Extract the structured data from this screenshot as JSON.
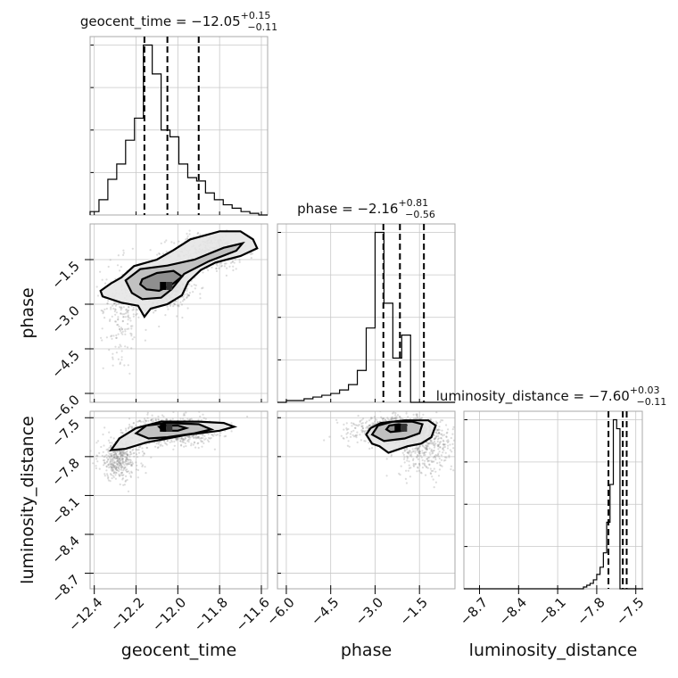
{
  "chart_data": {
    "type": "corner",
    "parameters": [
      {
        "name": "geocent_time",
        "xlabel": "geocent_time",
        "range": [
          -12.42,
          -11.57
        ],
        "ticks": [
          -12.4,
          -12.2,
          -12.0,
          -11.8,
          -11.6
        ],
        "tick_labels": [
          "−12.4",
          "−12.2",
          "−12.0",
          "−11.8",
          "−11.6"
        ],
        "title": {
          "prefix": "geocent_time = −12.05",
          "plus": "+0.15",
          "minus": "−0.11"
        },
        "quantiles": [
          -12.16,
          -12.05,
          -11.9
        ],
        "histogram": {
          "edges_start": -12.42,
          "bin_width": 0.0425,
          "counts": [
            2,
            9,
            21,
            30,
            44,
            57,
            100,
            83,
            50,
            46,
            30,
            22,
            20,
            13,
            9,
            6,
            4,
            2,
            1,
            0
          ]
        }
      },
      {
        "name": "phase",
        "xlabel": "phase",
        "ylabel": "phase",
        "range": [
          -6.3,
          -0.3
        ],
        "ticks": [
          -6.0,
          -4.5,
          -3.0,
          -1.5
        ],
        "tick_labels": [
          "−6.0",
          "−4.5",
          "−3.0",
          "−1.5"
        ],
        "title": {
          "prefix": "phase = −2.16",
          "plus": "+0.81",
          "minus": "−0.56"
        },
        "quantiles": [
          -2.72,
          -2.16,
          -1.35
        ],
        "histogram": {
          "edges_start": -6.3,
          "bin_width": 0.3,
          "counts": [
            0,
            1,
            1,
            2,
            3,
            4,
            5,
            7,
            10,
            18,
            42,
            96,
            56,
            25,
            38,
            0,
            0,
            0,
            0,
            0
          ]
        }
      },
      {
        "name": "luminosity_distance",
        "xlabel": "luminosity_distance",
        "ylabel": "luminosity_distance",
        "range": [
          -8.82,
          -7.45
        ],
        "ticks": [
          -8.7,
          -8.4,
          -8.1,
          -7.8,
          -7.5
        ],
        "tick_labels": [
          "−8.7",
          "−8.4",
          "−8.1",
          "−7.8",
          "−7.5"
        ],
        "title": {
          "prefix": "luminosity_distance = −7.60",
          "plus": "+0.03",
          "minus": "−0.11"
        },
        "quantiles": [
          -7.71,
          -7.6,
          -7.57
        ],
        "histogram": {
          "edges_start": -8.82,
          "bin_width": 0.0255,
          "counts": [
            0,
            0,
            0,
            0,
            0,
            0,
            0,
            0,
            0,
            0,
            0,
            0,
            0,
            0,
            0,
            0,
            0,
            0,
            0,
            0,
            0,
            0,
            0,
            0,
            0,
            0,
            0,
            0,
            0,
            0,
            0,
            0,
            0,
            0,
            0,
            0,
            1,
            2,
            3,
            5,
            8,
            12,
            20,
            37,
            58,
            94,
            89,
            0,
            0,
            0,
            0,
            0,
            0,
            0
          ]
        }
      }
    ],
    "pairs": [
      {
        "x": "geocent_time",
        "y": "phase",
        "peak": [
          -12.06,
          -2.4
        ],
        "contours": [
          [
            [
              -12.17,
              -2.16
            ],
            [
              -12.1,
              -1.95
            ],
            [
              -12.02,
              -1.88
            ],
            [
              -11.98,
              -2.07
            ],
            [
              -12.03,
              -2.35
            ],
            [
              -12.09,
              -2.55
            ],
            [
              -12.15,
              -2.5
            ],
            [
              -12.18,
              -2.33
            ]
          ],
          [
            [
              -12.22,
              -2.62
            ],
            [
              -12.25,
              -2.2
            ],
            [
              -12.18,
              -1.82
            ],
            [
              -12.05,
              -1.7
            ],
            [
              -11.92,
              -1.5
            ],
            [
              -11.78,
              -1.1
            ],
            [
              -11.69,
              -0.95
            ],
            [
              -11.72,
              -1.2
            ],
            [
              -11.85,
              -1.55
            ],
            [
              -11.97,
              -1.98
            ],
            [
              -12.03,
              -2.5
            ],
            [
              -12.08,
              -2.78
            ],
            [
              -12.17,
              -2.83
            ]
          ],
          [
            [
              -12.37,
              -2.55
            ],
            [
              -12.36,
              -2.74
            ],
            [
              -12.27,
              -2.95
            ],
            [
              -12.19,
              -3.05
            ],
            [
              -12.16,
              -3.42
            ],
            [
              -12.13,
              -3.15
            ],
            [
              -12.05,
              -3.0
            ],
            [
              -11.98,
              -2.7
            ],
            [
              -11.95,
              -2.25
            ],
            [
              -11.89,
              -1.85
            ],
            [
              -11.82,
              -1.6
            ],
            [
              -11.7,
              -1.38
            ],
            [
              -11.62,
              -1.12
            ],
            [
              -11.64,
              -0.82
            ],
            [
              -11.7,
              -0.55
            ],
            [
              -11.8,
              -0.55
            ],
            [
              -11.94,
              -0.82
            ],
            [
              -12.02,
              -1.18
            ],
            [
              -12.1,
              -1.5
            ],
            [
              -12.21,
              -1.72
            ],
            [
              -12.27,
              -2.1
            ],
            [
              -12.32,
              -2.3
            ]
          ]
        ],
        "samples": [
          {
            "center": [
              -12.06,
              -2.4
            ],
            "spread": [
              0.06,
              0.35
            ],
            "weight": 0.55
          },
          {
            "center": [
              -11.85,
              -1.25
            ],
            "spread": [
              0.09,
              0.3
            ],
            "weight": 0.3
          },
          {
            "center": [
              -12.27,
              -3.2
            ],
            "spread": [
              0.05,
              0.8
            ],
            "weight": 0.15
          }
        ]
      },
      {
        "x": "geocent_time",
        "y": "luminosity_distance",
        "peak": [
          -12.06,
          -7.58
        ],
        "contours": [
          [
            [
              -12.09,
              -7.57
            ],
            [
              -12.06,
              -7.56
            ],
            [
              -12.0,
              -7.56
            ],
            [
              -11.96,
              -7.58
            ],
            [
              -12.0,
              -7.6
            ],
            [
              -12.07,
              -7.6
            ]
          ],
          [
            [
              -12.2,
              -7.62
            ],
            [
              -12.15,
              -7.56
            ],
            [
              -12.05,
              -7.54
            ],
            [
              -11.9,
              -7.55
            ],
            [
              -11.84,
              -7.59
            ],
            [
              -11.92,
              -7.62
            ],
            [
              -12.05,
              -7.65
            ],
            [
              -12.14,
              -7.66
            ]
          ],
          [
            [
              -12.32,
              -7.75
            ],
            [
              -12.28,
              -7.66
            ],
            [
              -12.2,
              -7.58
            ],
            [
              -12.08,
              -7.53
            ],
            [
              -11.9,
              -7.53
            ],
            [
              -11.78,
              -7.54
            ],
            [
              -11.73,
              -7.57
            ],
            [
              -11.8,
              -7.6
            ],
            [
              -11.95,
              -7.63
            ],
            [
              -12.05,
              -7.66
            ],
            [
              -12.15,
              -7.69
            ],
            [
              -12.25,
              -7.74
            ]
          ]
        ],
        "samples": [
          {
            "center": [
              -12.03,
              -7.6
            ],
            "spread": [
              0.1,
              0.05
            ],
            "weight": 0.7
          },
          {
            "center": [
              -12.28,
              -7.82
            ],
            "spread": [
              0.05,
              0.08
            ],
            "weight": 0.3
          }
        ]
      },
      {
        "x": "phase",
        "y": "luminosity_distance",
        "peak": [
          -2.16,
          -7.58
        ],
        "contours": [
          [
            [
              -2.62,
              -7.59
            ],
            [
              -2.52,
              -7.56
            ],
            [
              -2.2,
              -7.55
            ],
            [
              -1.95,
              -7.56
            ],
            [
              -2.05,
              -7.6
            ],
            [
              -2.48,
              -7.61
            ]
          ],
          [
            [
              -3.1,
              -7.63
            ],
            [
              -2.9,
              -7.56
            ],
            [
              -2.4,
              -7.53
            ],
            [
              -1.75,
              -7.53
            ],
            [
              -1.4,
              -7.55
            ],
            [
              -1.5,
              -7.62
            ],
            [
              -2.0,
              -7.66
            ],
            [
              -2.7,
              -7.68
            ]
          ],
          [
            [
              -3.3,
              -7.63
            ],
            [
              -3.15,
              -7.58
            ],
            [
              -2.8,
              -7.54
            ],
            [
              -2.0,
              -7.52
            ],
            [
              -1.2,
              -7.52
            ],
            [
              -0.95,
              -7.56
            ],
            [
              -1.1,
              -7.65
            ],
            [
              -1.45,
              -7.7
            ],
            [
              -1.9,
              -7.72
            ],
            [
              -2.55,
              -7.77
            ],
            [
              -2.85,
              -7.72
            ],
            [
              -3.1,
              -7.7
            ]
          ]
        ],
        "samples": [
          {
            "center": [
              -2.2,
              -7.6
            ],
            "spread": [
              0.7,
              0.05
            ],
            "weight": 0.75
          },
          {
            "center": [
              -1.3,
              -7.75
            ],
            "spread": [
              0.5,
              0.1
            ],
            "weight": 0.25
          }
        ]
      }
    ]
  }
}
